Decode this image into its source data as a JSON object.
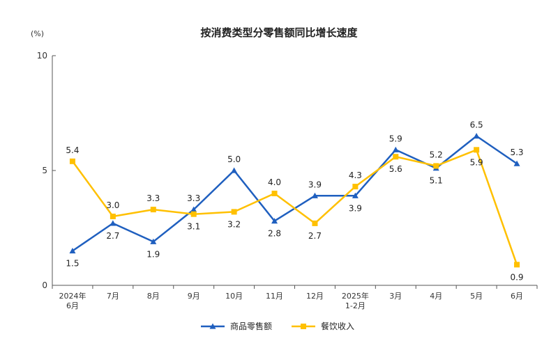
{
  "chart_data": {
    "type": "line",
    "title": "按消费类型分零售额同比增长速度",
    "unit_label": "(%)",
    "ylim": [
      0,
      10
    ],
    "yticks": [
      0,
      5,
      10
    ],
    "categories": [
      [
        "2024年",
        "6月"
      ],
      [
        "7月"
      ],
      [
        "8月"
      ],
      [
        "9月"
      ],
      [
        "10月"
      ],
      [
        "11月"
      ],
      [
        "12月"
      ],
      [
        "2025年",
        "1-2月"
      ],
      [
        "3月"
      ],
      [
        "4月"
      ],
      [
        "5月"
      ],
      [
        "6月"
      ]
    ],
    "series": [
      {
        "name": "商品零售额",
        "color": "#1f5fbf",
        "marker": "triangle",
        "values": [
          1.5,
          2.7,
          1.9,
          3.3,
          5.0,
          2.8,
          3.9,
          3.9,
          5.9,
          5.1,
          6.5,
          5.3
        ],
        "labels": [
          "1.5",
          "2.7",
          "1.9",
          "3.3",
          "5.0",
          "2.8",
          "3.9",
          "3.9",
          "5.9",
          "5.1",
          "6.5",
          "5.3"
        ]
      },
      {
        "name": "餐饮收入",
        "color": "#ffc000",
        "marker": "square",
        "values": [
          5.4,
          3.0,
          3.3,
          3.1,
          3.2,
          4.0,
          2.7,
          4.3,
          5.6,
          5.2,
          5.9,
          0.9
        ],
        "labels": [
          "5.4",
          "3.0",
          "3.3",
          "3.1",
          "3.2",
          "4.0",
          "2.7",
          "4.3",
          "5.6",
          "5.2",
          "5.9",
          "0.9"
        ]
      }
    ],
    "legend_position": "bottom",
    "grid": false
  }
}
